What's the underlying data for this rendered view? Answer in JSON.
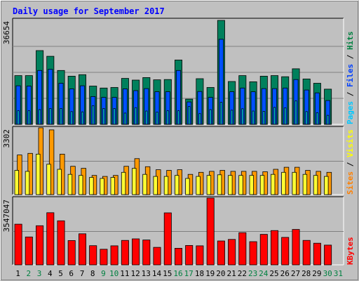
{
  "chart_data": {
    "type": "bar",
    "title": "Daily usage for September 2017",
    "categories": [
      "1",
      "2",
      "3",
      "4",
      "5",
      "6",
      "7",
      "8",
      "9",
      "10",
      "11",
      "12",
      "13",
      "14",
      "15",
      "16",
      "17",
      "18",
      "19",
      "20",
      "21",
      "22",
      "23",
      "24",
      "25",
      "26",
      "27",
      "28",
      "29",
      "30",
      "31"
    ],
    "weekend_days": [
      "2",
      "3",
      "9",
      "10",
      "16",
      "17",
      "23",
      "24",
      "30",
      "31"
    ],
    "panels": [
      {
        "id": "hits",
        "ymax_label": "36654",
        "ymax": 36654,
        "right_label_parts": [
          {
            "text": "Pages",
            "color": "#00C8FF"
          },
          {
            "text": " / ",
            "color": "#000000"
          },
          {
            "text": "Files",
            "color": "#0040FF"
          },
          {
            "text": " / ",
            "color": "#000000"
          },
          {
            "text": "Hits",
            "color": "#008040"
          }
        ],
        "series": [
          {
            "name": "Hits",
            "color": "#00805C",
            "values": [
              17200,
              17200,
              26000,
              24000,
              19000,
              17000,
              17500,
              13500,
              12800,
              13000,
              16200,
              15600,
              16500,
              15700,
              15800,
              22700,
              8900,
              16100,
              13000,
              36654,
              15100,
              17200,
              15000,
              17000,
              17200,
              16800,
              19600,
              16000,
              14500,
              12400,
              0
            ]
          },
          {
            "name": "Files",
            "color": "#0050FF",
            "values": [
              13600,
              13500,
              19000,
              19400,
              14500,
              12500,
              13600,
              9800,
              9500,
              9500,
              12500,
              11900,
              12600,
              11500,
              11500,
              19000,
              7900,
              11600,
              9500,
              30000,
              11500,
              12800,
              11500,
              12600,
              12600,
              12800,
              15800,
              12100,
              11100,
              8400,
              0
            ]
          },
          {
            "name": "Pages",
            "color": "#00D0F0",
            "values": [
              4800,
              4800,
              5200,
              5600,
              5600,
              4500,
              4400,
              6600,
              5600,
              5600,
              4000,
              5900,
              4700,
              4300,
              4800,
              4800,
              6300,
              3800,
              5200,
              7800,
              5000,
              5500,
              4700,
              4600,
              6000,
              5800,
              8300,
              4500,
              4100,
              3200,
              0
            ]
          }
        ]
      },
      {
        "id": "visits",
        "ymax_label": "3302",
        "ymax": 3302,
        "right_label_parts": [
          {
            "text": "Sites",
            "color": "#FF8000"
          },
          {
            "text": " / ",
            "color": "#000000"
          },
          {
            "text": "Visits",
            "color": "#FFFF00"
          }
        ],
        "series": [
          {
            "name": "Visits",
            "color": "#FF9900",
            "values": [
              1960,
              2040,
              3302,
              3200,
              2000,
              1400,
              1300,
              950,
              900,
              950,
              1400,
              1780,
              1380,
              1230,
              1200,
              1230,
              1000,
              1100,
              1150,
              1200,
              1150,
              1150,
              1150,
              1130,
              1250,
              1350,
              1350,
              1200,
              1150,
              1100,
              0
            ]
          },
          {
            "name": "Sites",
            "color": "#FFFF33",
            "values": [
              1200,
              1150,
              2000,
              1500,
              1250,
              1000,
              950,
              850,
              800,
              850,
              1100,
              1300,
              1000,
              900,
              900,
              950,
              800,
              900,
              950,
              980,
              950,
              950,
              950,
              950,
              1000,
              1100,
              1100,
              1000,
              950,
              900,
              0
            ]
          }
        ]
      },
      {
        "id": "kbytes",
        "ymax_label": "3547047",
        "ymax": 3547047,
        "right_label_parts": [
          {
            "text": "KBytes",
            "color": "#FF0000"
          }
        ],
        "series": [
          {
            "name": "KBytes",
            "color": "#FF0000",
            "values": [
              2160000,
              1480000,
              2080000,
              2770000,
              2340000,
              1290000,
              1650000,
              1020000,
              830000,
              1010000,
              1300000,
              1380000,
              1320000,
              930000,
              2760000,
              880000,
              1030000,
              1010000,
              3547047,
              1270000,
              1350000,
              1710000,
              1230000,
              1620000,
              1820000,
              1460000,
              1880000,
              1300000,
              1150000,
              1050000,
              0
            ]
          }
        ]
      }
    ],
    "grid": true,
    "legend": "right-vertical"
  },
  "colors": {
    "background": "#C0C0C0",
    "title": "#0000FF",
    "axis_text": "#000000",
    "weekend_text": "#008040",
    "grid": "#808080"
  }
}
